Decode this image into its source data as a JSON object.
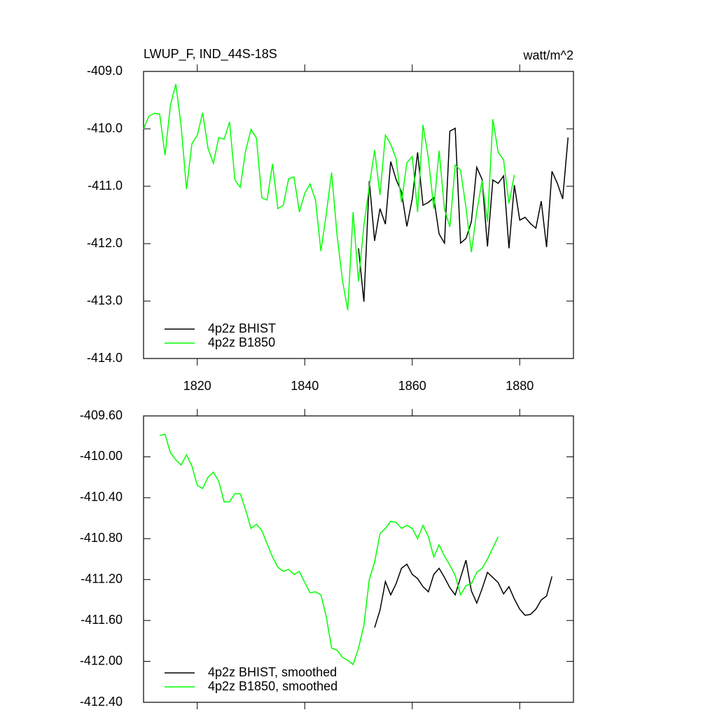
{
  "chart_data": [
    {
      "type": "line",
      "title": "LWUP_F, IND_44S-18S",
      "units": "watt/m^2",
      "xlim": [
        1810,
        1890
      ],
      "xticks": [
        1820,
        1840,
        1860,
        1880
      ],
      "ylim": [
        -414,
        -409
      ],
      "yticks": [
        {
          "value": -409,
          "label": "-409.0"
        },
        {
          "value": -410,
          "label": "-410.0"
        },
        {
          "value": -411,
          "label": "-411.0"
        },
        {
          "value": -412,
          "label": "-412.0"
        },
        {
          "value": -413,
          "label": "-413.0"
        },
        {
          "value": -414,
          "label": "-414.0"
        }
      ],
      "legend": "lower left",
      "series": [
        {
          "name": "4p2z BHIST",
          "color": "#000000",
          "x": [
            1850,
            1851,
            1852,
            1853,
            1854,
            1855,
            1856,
            1857,
            1858,
            1859,
            1860,
            1861,
            1862,
            1863,
            1864,
            1865,
            1866,
            1867,
            1868,
            1869,
            1870,
            1871,
            1872,
            1873,
            1874,
            1875,
            1876,
            1877,
            1878,
            1879,
            1880,
            1881,
            1882,
            1883,
            1884,
            1885,
            1886,
            1887,
            1888,
            1889
          ],
          "values": [
            -412.08,
            -413.01,
            -410.91,
            -411.95,
            -411.39,
            -411.66,
            -410.57,
            -410.88,
            -411.1,
            -411.7,
            -411.22,
            -410.41,
            -411.33,
            -411.28,
            -411.2,
            -411.83,
            -411.99,
            -410.04,
            -409.99,
            -411.99,
            -411.91,
            -411.62,
            -410.67,
            -410.88,
            -412.05,
            -410.89,
            -410.95,
            -410.82,
            -412.08,
            -410.98,
            -411.59,
            -411.54,
            -411.65,
            -411.73,
            -411.26,
            -412.06,
            -410.74,
            -410.95,
            -411.22,
            -410.15
          ]
        },
        {
          "name": "4p2z B1850",
          "color": "#00ff00",
          "x": [
            1810,
            1811,
            1812,
            1813,
            1814,
            1815,
            1816,
            1817,
            1818,
            1819,
            1820,
            1821,
            1822,
            1823,
            1824,
            1825,
            1826,
            1827,
            1828,
            1829,
            1830,
            1831,
            1832,
            1833,
            1834,
            1835,
            1836,
            1837,
            1838,
            1839,
            1840,
            1841,
            1842,
            1843,
            1844,
            1845,
            1846,
            1847,
            1848,
            1849,
            1850,
            1851,
            1852,
            1853,
            1854,
            1855,
            1856,
            1857,
            1858,
            1859,
            1860,
            1861,
            1862,
            1863,
            1864,
            1865,
            1866,
            1867,
            1868,
            1869,
            1870,
            1871,
            1872,
            1873,
            1874,
            1875,
            1876,
            1877,
            1878,
            1879
          ],
          "values": [
            -410.0,
            -409.78,
            -409.73,
            -409.74,
            -410.46,
            -409.59,
            -409.22,
            -409.95,
            -411.05,
            -410.26,
            -410.11,
            -409.72,
            -410.34,
            -410.6,
            -410.15,
            -410.18,
            -409.88,
            -410.89,
            -411.02,
            -410.38,
            -410.01,
            -410.16,
            -411.2,
            -411.24,
            -410.61,
            -411.39,
            -411.33,
            -410.87,
            -410.84,
            -411.45,
            -411.12,
            -410.96,
            -411.24,
            -412.13,
            -411.49,
            -410.76,
            -411.84,
            -412.63,
            -413.16,
            -411.45,
            -412.66,
            -411.68,
            -411.0,
            -410.37,
            -411.15,
            -410.11,
            -410.27,
            -410.52,
            -411.28,
            -410.59,
            -410.48,
            -411.45,
            -409.93,
            -410.51,
            -411.39,
            -410.38,
            -411.4,
            -411.71,
            -410.63,
            -410.72,
            -411.37,
            -412.15,
            -411.44,
            -410.9,
            -411.62,
            -409.83,
            -410.41,
            -410.54,
            -411.3,
            -410.8
          ]
        }
      ]
    },
    {
      "type": "line",
      "xlim": [
        1810,
        1890
      ],
      "ylim": [
        -412.4,
        -409.6
      ],
      "yticks": [
        {
          "value": -409.6,
          "label": "-409.60"
        },
        {
          "value": -410,
          "label": "-410.00"
        },
        {
          "value": -410.4,
          "label": "-410.40"
        },
        {
          "value": -410.8,
          "label": "-410.80"
        },
        {
          "value": -411.2,
          "label": "-411.20"
        },
        {
          "value": -411.6,
          "label": "-411.60"
        },
        {
          "value": -412,
          "label": "-412.00"
        },
        {
          "value": -412.4,
          "label": "-412.40"
        }
      ],
      "legend": "lower left",
      "series": [
        {
          "name": "4p2z BHIST, smoothed",
          "color": "#000000",
          "x": [
            1853,
            1854,
            1855,
            1856,
            1857,
            1858,
            1859,
            1860,
            1861,
            1862,
            1863,
            1864,
            1865,
            1866,
            1867,
            1868,
            1869,
            1870,
            1871,
            1872,
            1873,
            1874,
            1875,
            1876,
            1877,
            1878,
            1879,
            1880,
            1881,
            1882,
            1883,
            1884,
            1885,
            1886
          ],
          "values": [
            -411.67,
            -411.5,
            -411.22,
            -411.35,
            -411.24,
            -411.09,
            -411.05,
            -411.15,
            -411.19,
            -411.27,
            -411.32,
            -411.15,
            -411.09,
            -411.18,
            -411.28,
            -411.35,
            -411.18,
            -411.01,
            -411.31,
            -411.43,
            -411.29,
            -411.13,
            -411.18,
            -411.23,
            -411.34,
            -411.27,
            -411.39,
            -411.49,
            -411.55,
            -411.54,
            -411.49,
            -411.4,
            -411.36,
            -411.17
          ]
        },
        {
          "name": "4p2z B1850, smoothed",
          "color": "#00ff00",
          "x": [
            1813,
            1814,
            1815,
            1816,
            1817,
            1818,
            1819,
            1820,
            1821,
            1822,
            1823,
            1824,
            1825,
            1826,
            1827,
            1828,
            1829,
            1830,
            1831,
            1832,
            1833,
            1834,
            1835,
            1836,
            1837,
            1838,
            1839,
            1840,
            1841,
            1842,
            1843,
            1844,
            1845,
            1846,
            1847,
            1848,
            1849,
            1850,
            1851,
            1852,
            1853,
            1854,
            1855,
            1856,
            1857,
            1858,
            1859,
            1860,
            1861,
            1862,
            1863,
            1864,
            1865,
            1866,
            1867,
            1868,
            1869,
            1870,
            1871,
            1872,
            1873,
            1874,
            1875,
            1876
          ],
          "values": [
            -409.79,
            -409.78,
            -409.96,
            -410.03,
            -410.08,
            -409.98,
            -410.09,
            -410.28,
            -410.31,
            -410.2,
            -410.15,
            -410.24,
            -410.44,
            -410.44,
            -410.36,
            -410.36,
            -410.52,
            -410.7,
            -410.66,
            -410.72,
            -410.85,
            -410.98,
            -411.08,
            -411.12,
            -411.1,
            -411.15,
            -411.12,
            -411.23,
            -411.33,
            -411.32,
            -411.35,
            -411.56,
            -411.87,
            -411.89,
            -411.96,
            -411.99,
            -412.03,
            -411.87,
            -411.65,
            -411.2,
            -411.03,
            -410.75,
            -410.7,
            -410.63,
            -410.64,
            -410.7,
            -410.67,
            -410.7,
            -410.8,
            -410.67,
            -410.78,
            -410.98,
            -410.86,
            -410.97,
            -411.06,
            -411.16,
            -411.35,
            -411.26,
            -411.24,
            -411.13,
            -411.09,
            -411.0,
            -410.89,
            -410.78
          ]
        }
      ]
    }
  ]
}
